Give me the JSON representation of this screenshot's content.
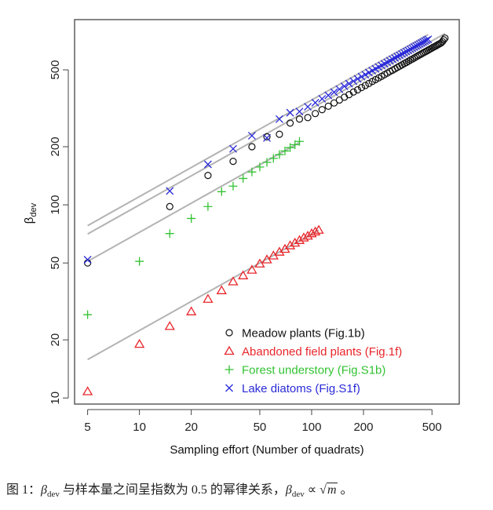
{
  "chart_data": {
    "type": "scatter",
    "title": "",
    "xlabel": "Sampling effort (Number of quadrats)",
    "ylabel_main": "β",
    "ylabel_sub": "dev",
    "xscale": "log",
    "yscale": "log",
    "xlim": [
      4.2,
      720
    ],
    "ylim": [
      9.3,
      910
    ],
    "xticks": [
      5,
      10,
      20,
      50,
      100,
      200,
      500
    ],
    "yticks": [
      10,
      20,
      50,
      100,
      200,
      500
    ],
    "grid": false,
    "legend_position": "bottom-right",
    "fit_color": "#b3b3b3",
    "series": [
      {
        "name": "Meadow plants (Fig.1b)",
        "marker": "circle",
        "color": "#111111",
        "fit_coefficient": 31.6,
        "x": [
          5,
          15,
          25,
          35,
          45,
          55,
          65,
          75,
          85,
          95,
          105,
          115,
          125,
          135,
          145,
          155,
          165,
          175,
          185,
          195,
          205,
          215,
          225,
          235,
          245,
          255,
          265,
          275,
          285,
          295,
          305,
          315,
          325,
          335,
          345,
          355,
          365,
          375,
          385,
          395,
          405,
          415,
          425,
          435,
          445,
          455,
          465,
          475,
          485,
          495,
          505,
          515,
          525,
          535,
          545,
          555,
          565,
          575,
          585,
          595
        ],
        "y": [
          50,
          98,
          142,
          168,
          200,
          225,
          232,
          265,
          278,
          283,
          297,
          311,
          324,
          337,
          349,
          361,
          372,
          384,
          394,
          405,
          415,
          425,
          435,
          445,
          454,
          463,
          472,
          481,
          490,
          498,
          506,
          515,
          523,
          531,
          539,
          546,
          554,
          562,
          569,
          576,
          584,
          591,
          598,
          605,
          612,
          619,
          625,
          632,
          639,
          645,
          652,
          658,
          664,
          671,
          677,
          683,
          689,
          700,
          715,
          730
        ]
      },
      {
        "name": "Abandoned field plants (Fig.1f)",
        "marker": "triangle",
        "color": "#e8262b",
        "fit_coefficient": 7.07,
        "x": [
          5,
          10,
          15,
          20,
          25,
          30,
          35,
          40,
          45,
          50,
          55,
          60,
          65,
          70,
          75,
          80,
          85,
          90,
          95,
          100,
          105,
          110
        ],
        "y": [
          10.8,
          19,
          23.5,
          28,
          32.5,
          36,
          40,
          43,
          46,
          49.5,
          52,
          54.5,
          57,
          59,
          61.5,
          63.5,
          65.5,
          67.5,
          69,
          71,
          72.5,
          74
        ]
      },
      {
        "name": "Forest understory (Fig.S1b)",
        "marker": "plus",
        "color": "#33c233",
        "fit_coefficient": 22.8,
        "x": [
          5,
          10,
          15,
          20,
          25,
          30,
          35,
          40,
          45,
          50,
          55,
          60,
          65,
          70,
          75,
          80,
          85
        ],
        "y": [
          27,
          51,
          71,
          85,
          98,
          117,
          125,
          137,
          148,
          157,
          166,
          174,
          182,
          190,
          198,
          205,
          213
        ]
      },
      {
        "name": "Lake diatoms (Fig.S1f)",
        "marker": "cross",
        "color": "#2a2ad8",
        "fit_coefficient": 34.9,
        "x": [
          5,
          15,
          25,
          35,
          45,
          55,
          65,
          75,
          85,
          95,
          105,
          115,
          125,
          135,
          145,
          155,
          165,
          175,
          185,
          195,
          205,
          215,
          225,
          235,
          245,
          255,
          265,
          275,
          285,
          295,
          305,
          315,
          325,
          335,
          345,
          355,
          365,
          375,
          385,
          395,
          405,
          415,
          425,
          435,
          445,
          455,
          465,
          475
        ],
        "y": [
          52,
          118,
          162,
          195,
          228,
          222,
          278,
          300,
          304,
          322,
          338,
          354,
          369,
          383,
          397,
          411,
          424,
          437,
          449,
          461,
          472,
          484,
          495,
          506,
          517,
          527,
          537,
          547,
          557,
          567,
          576,
          586,
          595,
          604,
          613,
          622,
          630,
          639,
          647,
          656,
          664,
          672,
          680,
          688,
          696,
          704,
          712,
          719
        ]
      }
    ]
  },
  "caption": {
    "prefix": "图 1：",
    "beta": "β",
    "sub": "dev",
    "middle": " 与样本量之间呈指数为 0.5 的幂律关系，",
    "propto": " ∝ √",
    "m": "m",
    "end": " 。"
  }
}
